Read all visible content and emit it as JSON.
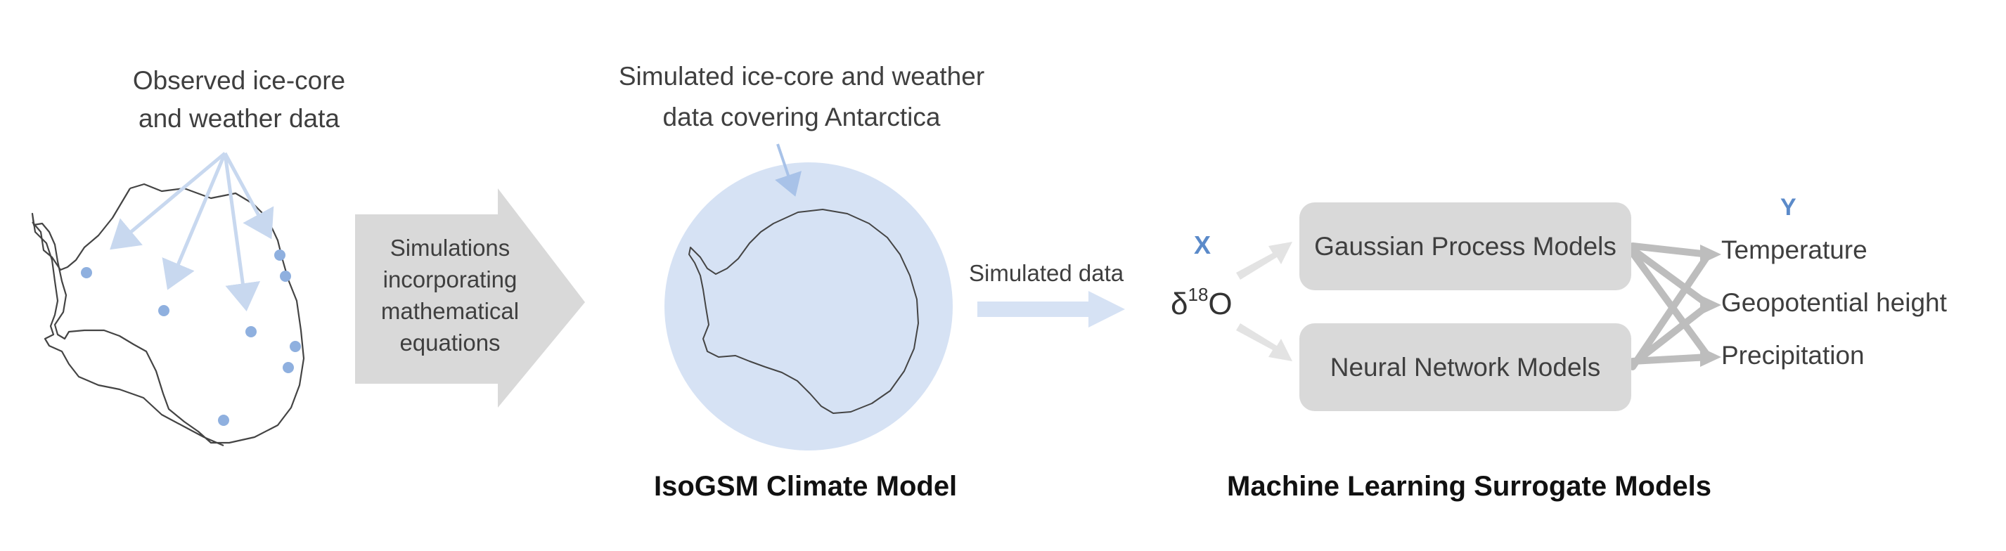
{
  "observed_label": [
    "Observed ice-core",
    "and weather data"
  ],
  "simulated_coverage_label": [
    "Simulated ice-core and weather",
    "data covering Antarctica"
  ],
  "simulation_arrow_label": [
    "Simulations",
    "incorporating",
    "mathematical",
    "equations"
  ],
  "simulated_data_label": "Simulated data",
  "x_label": "X",
  "y_label": "Y",
  "input_variable": {
    "base": "δ",
    "superscript": "18",
    "suffix": "O"
  },
  "models": {
    "gaussian": "Gaussian Process Models",
    "neural": "Neural Network Models"
  },
  "outputs": [
    "Temperature",
    "Geopotential height",
    "Precipitation"
  ],
  "captions": {
    "climate_model": "IsoGSM Climate Model",
    "surrogate": "Machine Learning Surrogate Models"
  },
  "colors": {
    "light_blue": "#a8c2e8",
    "globe_fill": "#d6e2f4",
    "dot_blue": "#8fb0df",
    "gray_arrow": "#d9d9d9",
    "box_gray": "#d9d9d9",
    "xy_blue": "#5b8ac9"
  }
}
